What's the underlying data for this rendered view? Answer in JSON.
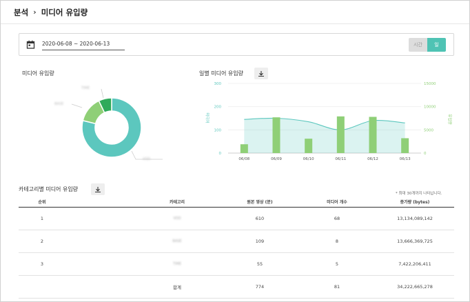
{
  "breadcrumb": {
    "parent": "분석",
    "separator": "›",
    "current": "미디어 유입량"
  },
  "filter": {
    "date_range": "2020-06-08 ~ 2020-06-13",
    "hour_label": "시간",
    "day_label": "일",
    "selected": "day"
  },
  "donut_section": {
    "title": "미디어 유입량",
    "segment_labels": [
      "VOD",
      "BASE",
      "TIME"
    ],
    "chart_data": {
      "type": "pie",
      "categories": [
        "VOD",
        "BASE",
        "TIME"
      ],
      "values": [
        610,
        109,
        55
      ],
      "colors": [
        "#5cc7be",
        "#8fcf77",
        "#2faa5a"
      ]
    }
  },
  "daily_section": {
    "title": "일별 미디어 유입량",
    "ylabel_left": "미디어",
    "ylabel_right": "유입량",
    "chart_data": {
      "type": "bar",
      "categories": [
        "06/08",
        "06/09",
        "06/10",
        "06/11",
        "06/12",
        "06/13"
      ],
      "series": [
        {
          "type": "area",
          "axis": "left",
          "values": [
            145,
            150,
            135,
            100,
            140,
            130
          ],
          "color": "#5cc7be"
        },
        {
          "type": "bar",
          "axis": "right",
          "values": [
            1900,
            7700,
            3100,
            7900,
            7800,
            3200
          ],
          "color": "#8fcf77"
        }
      ],
      "ylim_left": [
        0,
        300
      ],
      "yticks_left": [
        "0",
        "100",
        "200",
        "300"
      ],
      "ylim_right": [
        0,
        15000
      ],
      "yticks_right": [
        "0",
        "5000",
        "10000",
        "15000"
      ],
      "colors": {
        "left_axis": "#5cc7be",
        "right_axis": "#8fcf77"
      }
    }
  },
  "category_section": {
    "title": "카테고리별 미디어 유입량",
    "note": "* 최대 30개까지 나타납니다.",
    "columns": [
      "순위",
      "카테고리",
      "원본 영상 (분)",
      "미디어 개수",
      "증가량 (bytes)"
    ],
    "rows": [
      {
        "rank": "1",
        "category": "VOD",
        "minutes": "610",
        "count": "68",
        "bytes": "13,134,089,142"
      },
      {
        "rank": "2",
        "category": "BASE",
        "minutes": "109",
        "count": "8",
        "bytes": "13,666,369,725"
      },
      {
        "rank": "3",
        "category": "TIME",
        "minutes": "55",
        "count": "5",
        "bytes": "7,422,206,411"
      }
    ],
    "total": {
      "label": "합계",
      "minutes": "774",
      "count": "81",
      "bytes": "34,222,665,278"
    }
  }
}
